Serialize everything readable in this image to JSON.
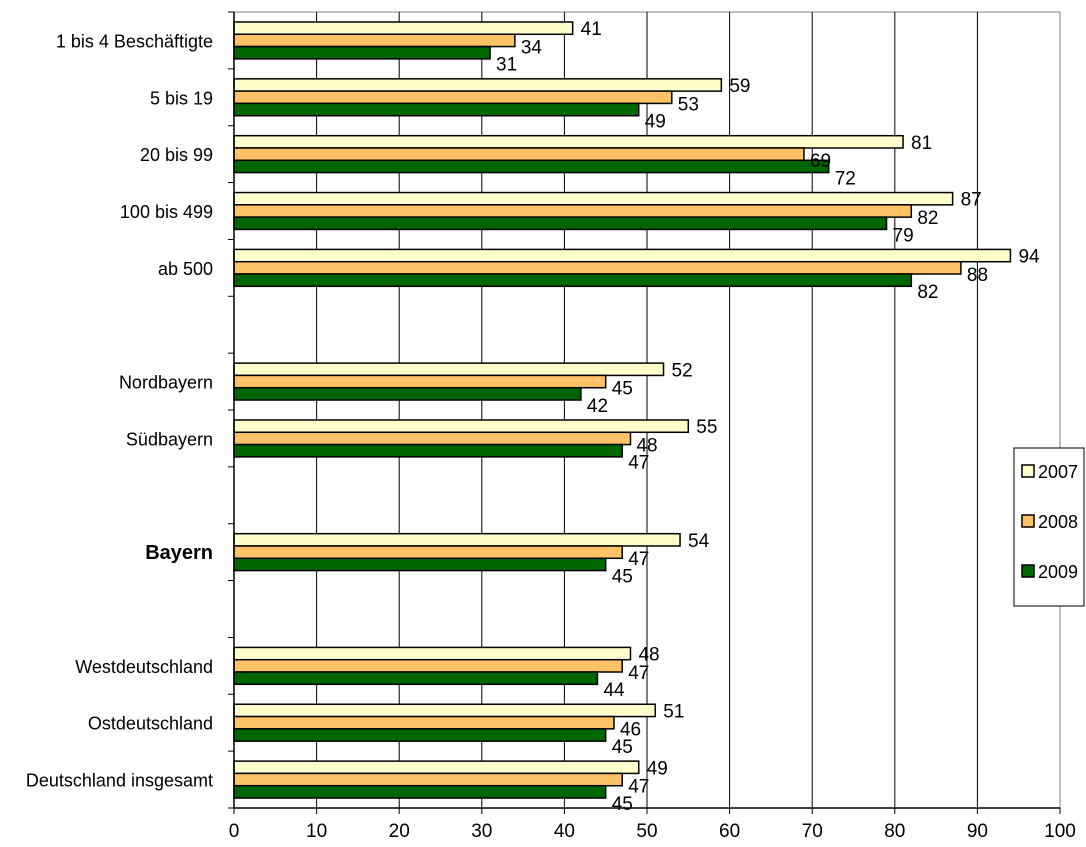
{
  "chart_data": {
    "type": "bar",
    "orientation": "horizontal",
    "title": "",
    "xlabel": "",
    "ylabel": "",
    "xlim": [
      0,
      100
    ],
    "x_ticks": [
      "0",
      "10",
      "20",
      "30",
      "40",
      "50",
      "60",
      "70",
      "80",
      "90",
      "100"
    ],
    "grid": "vertical",
    "legend_position": "right",
    "categories": [
      "1 bis 4 Beschäftigte",
      "5 bis  19",
      "20 bis  99",
      "100 bis 499",
      "ab 500",
      "",
      "Nordbayern",
      "Südbayern",
      "",
      "Bayern",
      "",
      "Westdeutschland",
      "Ostdeutschland",
      "Deutschland insgesamt"
    ],
    "bold_categories": [
      "Bayern"
    ],
    "series": [
      {
        "name": "2007",
        "color": "#FFFFCC",
        "values": [
          41,
          59,
          81,
          87,
          94,
          null,
          52,
          55,
          null,
          54,
          null,
          48,
          51,
          49
        ]
      },
      {
        "name": "2008",
        "color": "#FFC266",
        "values": [
          34,
          53,
          69,
          82,
          88,
          null,
          45,
          48,
          null,
          47,
          null,
          47,
          46,
          47
        ]
      },
      {
        "name": "2009",
        "color": "#006600",
        "values": [
          31,
          49,
          72,
          79,
          82,
          null,
          42,
          47,
          null,
          45,
          null,
          44,
          45,
          45
        ]
      }
    ]
  }
}
